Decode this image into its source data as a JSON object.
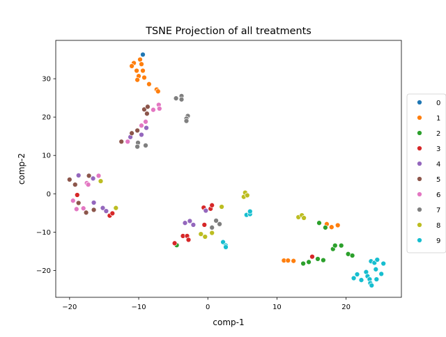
{
  "chart_data": {
    "type": "scatter",
    "title": "TSNE Projection of all treatments",
    "xlabel": "comp-1",
    "ylabel": "comp-2",
    "xlim": [
      -22,
      28
    ],
    "ylim": [
      -27,
      40
    ],
    "xticks": [
      -20,
      -10,
      0,
      10,
      20
    ],
    "yticks": [
      -20,
      -10,
      0,
      10,
      20,
      30
    ],
    "grid": false,
    "legend_position": "right",
    "series": [
      {
        "name": "0",
        "color": "#1f77b4",
        "points": [
          [
            -9.4,
            36.3
          ]
        ]
      },
      {
        "name": "1",
        "color": "#ff7f0e",
        "points": [
          [
            -10.7,
            34.1
          ],
          [
            -9.8,
            35.0
          ],
          [
            -11.0,
            33.3
          ],
          [
            -9.6,
            33.8
          ],
          [
            -10.3,
            32.1
          ],
          [
            -9.4,
            32.1
          ],
          [
            -10.0,
            30.7
          ],
          [
            -9.2,
            30.3
          ],
          [
            -10.2,
            29.7
          ],
          [
            -8.5,
            28.6
          ],
          [
            -7.4,
            27.2
          ],
          [
            -7.2,
            26.7
          ],
          [
            11.0,
            -17.4
          ],
          [
            11.6,
            -17.4
          ],
          [
            12.4,
            -17.5
          ],
          [
            17.2,
            -7.9
          ],
          [
            17.9,
            -8.7
          ],
          [
            18.8,
            -8.2
          ]
        ]
      },
      {
        "name": "2",
        "color": "#2ca02c",
        "points": [
          [
            -4.5,
            -13.4
          ],
          [
            13.8,
            -18.2
          ],
          [
            14.6,
            -17.8
          ],
          [
            15.9,
            -17.0
          ],
          [
            16.7,
            -17.3
          ],
          [
            16.1,
            -7.6
          ],
          [
            17.0,
            -8.8
          ],
          [
            18.1,
            -14.4
          ],
          [
            18.4,
            -13.5
          ],
          [
            19.3,
            -13.5
          ],
          [
            20.3,
            -15.7
          ],
          [
            20.9,
            -16.1
          ]
        ]
      },
      {
        "name": "3",
        "color": "#d62728",
        "points": [
          [
            -18.9,
            -0.3
          ],
          [
            -14.2,
            -5.7
          ],
          [
            -13.8,
            -5.1
          ],
          [
            -4.8,
            -12.9
          ],
          [
            -3.6,
            -11.0
          ],
          [
            -3.0,
            -11.0
          ],
          [
            -2.8,
            -12.0
          ],
          [
            -0.6,
            -3.6
          ],
          [
            0.4,
            -3.9
          ],
          [
            0.6,
            -3.0
          ],
          [
            -0.5,
            -8.1
          ],
          [
            15.1,
            -16.4
          ]
        ]
      },
      {
        "name": "4",
        "color": "#9467bd",
        "points": [
          [
            -18.7,
            4.8
          ],
          [
            -16.6,
            4.0
          ],
          [
            -16.5,
            -2.3
          ],
          [
            -15.2,
            -3.7
          ],
          [
            -14.7,
            -4.5
          ],
          [
            -11.2,
            14.8
          ],
          [
            -9.6,
            15.4
          ],
          [
            -8.9,
            17.2
          ],
          [
            -3.3,
            -7.6
          ],
          [
            -2.6,
            -7.1
          ],
          [
            -2.1,
            -8.1
          ],
          [
            -0.3,
            -4.4
          ]
        ]
      },
      {
        "name": "5",
        "color": "#8c564b",
        "points": [
          [
            -20.0,
            3.7
          ],
          [
            -19.2,
            2.4
          ],
          [
            -18.7,
            -2.4
          ],
          [
            -17.2,
            4.7
          ],
          [
            -17.6,
            -4.9
          ],
          [
            -16.5,
            -4.2
          ],
          [
            -12.5,
            13.6
          ],
          [
            -11.0,
            15.8
          ],
          [
            -10.2,
            16.5
          ],
          [
            -9.2,
            22.0
          ],
          [
            -8.7,
            22.7
          ],
          [
            -8.8,
            20.9
          ]
        ]
      },
      {
        "name": "6",
        "color": "#e377c2",
        "points": [
          [
            -19.5,
            -1.8
          ],
          [
            -19.0,
            -4.0
          ],
          [
            -18.0,
            -3.8
          ],
          [
            -17.5,
            2.8
          ],
          [
            -17.3,
            2.4
          ],
          [
            -15.8,
            4.7
          ],
          [
            -11.6,
            13.6
          ],
          [
            -9.6,
            17.8
          ],
          [
            -9.0,
            18.8
          ],
          [
            -7.9,
            21.9
          ],
          [
            -7.1,
            23.2
          ],
          [
            -7.0,
            22.2
          ]
        ]
      },
      {
        "name": "7",
        "color": "#7f7f7f",
        "points": [
          [
            -10.1,
            13.3
          ],
          [
            -10.2,
            12.3
          ],
          [
            -9.0,
            12.6
          ],
          [
            -4.6,
            24.9
          ],
          [
            -3.8,
            25.5
          ],
          [
            -3.8,
            24.6
          ],
          [
            -2.9,
            20.3
          ],
          [
            -3.1,
            19.6
          ],
          [
            -3.1,
            19.0
          ],
          [
            0.6,
            -8.8
          ],
          [
            1.2,
            -7.0
          ],
          [
            1.7,
            -7.9
          ]
        ]
      },
      {
        "name": "8",
        "color": "#bcbd22",
        "points": [
          [
            -15.5,
            3.3
          ],
          [
            -13.3,
            -3.7
          ],
          [
            -1.0,
            -10.5
          ],
          [
            -0.4,
            -11.2
          ],
          [
            0.6,
            -10.2
          ],
          [
            2.0,
            -3.4
          ],
          [
            5.2,
            -0.8
          ],
          [
            5.4,
            0.3
          ],
          [
            5.7,
            -0.4
          ],
          [
            13.1,
            -6.1
          ],
          [
            13.6,
            -5.6
          ],
          [
            13.9,
            -6.3
          ]
        ]
      },
      {
        "name": "9",
        "color": "#17becf",
        "points": [
          [
            2.2,
            -12.6
          ],
          [
            2.6,
            -13.5
          ],
          [
            2.6,
            -13.9
          ],
          [
            5.6,
            -5.5
          ],
          [
            6.1,
            -5.3
          ],
          [
            6.1,
            -4.6
          ],
          [
            21.1,
            -22.0
          ],
          [
            21.6,
            -21.0
          ],
          [
            22.2,
            -22.5
          ],
          [
            22.9,
            -20.4
          ],
          [
            23.1,
            -21.5
          ],
          [
            23.4,
            -22.3
          ],
          [
            23.6,
            -17.6
          ],
          [
            23.5,
            -23.3
          ],
          [
            23.7,
            -23.9
          ],
          [
            24.1,
            -18.0
          ],
          [
            24.3,
            -19.7
          ],
          [
            24.4,
            -22.3
          ],
          [
            24.5,
            -17.2
          ],
          [
            25.1,
            -20.9
          ],
          [
            25.4,
            -18.2
          ]
        ]
      }
    ]
  }
}
